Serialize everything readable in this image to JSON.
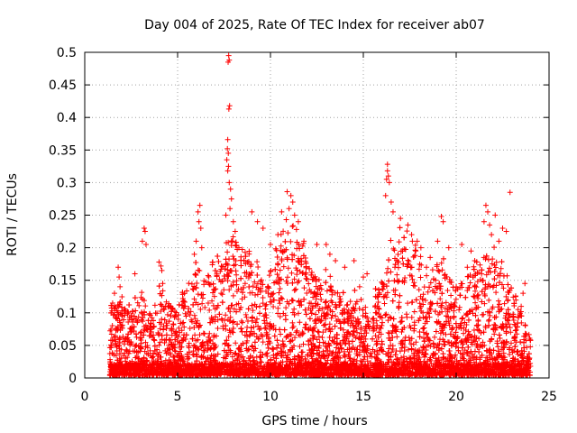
{
  "chart_data": {
    "type": "scatter",
    "title": "Day 004 of 2025, Rate Of TEC Index for receiver ab07",
    "xlabel": "GPS time / hours",
    "ylabel": "ROTI / TECUs",
    "xlim": [
      0,
      25
    ],
    "ylim": [
      0,
      0.5
    ],
    "xticks": [
      0,
      5,
      10,
      15,
      20,
      25
    ],
    "xtick_labels": [
      "0",
      "5",
      "10",
      "15",
      "20",
      "25"
    ],
    "yticks": [
      0,
      0.05,
      0.1,
      0.15,
      0.2,
      0.25,
      0.3,
      0.35,
      0.4,
      0.45,
      0.5
    ],
    "ytick_labels": [
      "0",
      "0.05",
      "0.1",
      "0.15",
      "0.2",
      "0.25",
      "0.3",
      "0.35",
      "0.4",
      "0.45",
      "0.5"
    ],
    "grid": true,
    "marker": "+",
    "color": "#ff0000",
    "x_range_of_data": [
      1.35,
      24.0
    ],
    "points": [
      [
        7.75,
        0.495
      ],
      [
        7.78,
        0.488
      ],
      [
        7.72,
        0.485
      ],
      [
        7.8,
        0.418
      ],
      [
        7.76,
        0.413
      ],
      [
        7.7,
        0.366
      ],
      [
        7.68,
        0.352
      ],
      [
        7.73,
        0.345
      ],
      [
        7.65,
        0.335
      ],
      [
        7.74,
        0.325
      ],
      [
        7.7,
        0.318
      ],
      [
        7.78,
        0.3
      ],
      [
        7.85,
        0.29
      ],
      [
        7.9,
        0.275
      ],
      [
        7.82,
        0.26
      ],
      [
        7.6,
        0.25
      ],
      [
        8.0,
        0.24
      ],
      [
        8.1,
        0.225
      ],
      [
        7.95,
        0.21
      ],
      [
        8.3,
        0.2
      ],
      [
        16.3,
        0.328
      ],
      [
        16.3,
        0.318
      ],
      [
        16.35,
        0.31
      ],
      [
        16.25,
        0.305
      ],
      [
        16.4,
        0.3
      ],
      [
        16.2,
        0.28
      ],
      [
        16.5,
        0.27
      ],
      [
        16.6,
        0.255
      ],
      [
        17.0,
        0.245
      ],
      [
        17.4,
        0.235
      ],
      [
        17.6,
        0.22
      ],
      [
        17.9,
        0.21
      ],
      [
        18.1,
        0.2
      ],
      [
        17.2,
        0.198
      ],
      [
        10.9,
        0.286
      ],
      [
        11.1,
        0.28
      ],
      [
        11.2,
        0.27
      ],
      [
        11.0,
        0.26
      ],
      [
        11.3,
        0.25
      ],
      [
        11.5,
        0.24
      ],
      [
        10.6,
        0.255
      ],
      [
        11.4,
        0.228
      ],
      [
        11.8,
        0.21
      ],
      [
        6.2,
        0.265
      ],
      [
        6.1,
        0.255
      ],
      [
        6.15,
        0.24
      ],
      [
        6.25,
        0.23
      ],
      [
        6.0,
        0.21
      ],
      [
        5.9,
        0.19
      ],
      [
        6.3,
        0.2
      ],
      [
        9.0,
        0.255
      ],
      [
        9.3,
        0.24
      ],
      [
        9.6,
        0.23
      ],
      [
        10.0,
        0.205
      ],
      [
        10.4,
        0.22
      ],
      [
        21.6,
        0.265
      ],
      [
        21.7,
        0.255
      ],
      [
        21.5,
        0.24
      ],
      [
        21.8,
        0.235
      ],
      [
        22.1,
        0.25
      ],
      [
        22.5,
        0.23
      ],
      [
        22.7,
        0.225
      ],
      [
        22.9,
        0.285
      ],
      [
        22.3,
        0.21
      ],
      [
        21.9,
        0.22
      ],
      [
        19.2,
        0.248
      ],
      [
        19.3,
        0.24
      ],
      [
        19.0,
        0.21
      ],
      [
        19.6,
        0.2
      ],
      [
        20.3,
        0.205
      ],
      [
        3.2,
        0.23
      ],
      [
        3.25,
        0.225
      ],
      [
        3.1,
        0.21
      ],
      [
        3.3,
        0.205
      ],
      [
        2.7,
        0.16
      ],
      [
        4.0,
        0.178
      ],
      [
        4.1,
        0.172
      ],
      [
        4.15,
        0.165
      ],
      [
        4.2,
        0.145
      ],
      [
        1.8,
        0.17
      ],
      [
        1.85,
        0.155
      ],
      [
        1.9,
        0.14
      ],
      [
        1.6,
        0.13
      ],
      [
        1.5,
        0.115
      ],
      [
        13.0,
        0.205
      ],
      [
        13.2,
        0.19
      ],
      [
        12.5,
        0.205
      ],
      [
        13.5,
        0.18
      ],
      [
        14.0,
        0.17
      ],
      [
        14.5,
        0.18
      ],
      [
        15.0,
        0.155
      ],
      [
        15.2,
        0.16
      ],
      [
        14.8,
        0.14
      ],
      [
        23.7,
        0.145
      ],
      [
        23.6,
        0.13
      ],
      [
        23.5,
        0.11
      ],
      [
        23.2,
        0.125
      ],
      [
        20.8,
        0.195
      ],
      [
        21.0,
        0.18
      ],
      [
        20.6,
        0.17
      ],
      [
        18.6,
        0.185
      ],
      [
        18.4,
        0.17
      ]
    ],
    "envelope": [
      [
        1.4,
        0.09
      ],
      [
        2.0,
        0.1
      ],
      [
        2.5,
        0.085
      ],
      [
        3.0,
        0.11
      ],
      [
        3.5,
        0.09
      ],
      [
        4.0,
        0.12
      ],
      [
        4.5,
        0.095
      ],
      [
        5.0,
        0.09
      ],
      [
        5.5,
        0.12
      ],
      [
        6.0,
        0.15
      ],
      [
        6.5,
        0.13
      ],
      [
        7.0,
        0.14
      ],
      [
        7.5,
        0.17
      ],
      [
        8.0,
        0.19
      ],
      [
        8.5,
        0.17
      ],
      [
        9.0,
        0.15
      ],
      [
        9.5,
        0.13
      ],
      [
        10.0,
        0.14
      ],
      [
        10.5,
        0.17
      ],
      [
        11.0,
        0.2
      ],
      [
        11.5,
        0.18
      ],
      [
        12.0,
        0.15
      ],
      [
        12.5,
        0.13
      ],
      [
        13.0,
        0.13
      ],
      [
        13.5,
        0.11
      ],
      [
        14.0,
        0.1
      ],
      [
        14.5,
        0.105
      ],
      [
        15.0,
        0.09
      ],
      [
        15.5,
        0.1
      ],
      [
        16.0,
        0.13
      ],
      [
        16.5,
        0.17
      ],
      [
        17.0,
        0.185
      ],
      [
        17.5,
        0.19
      ],
      [
        18.0,
        0.16
      ],
      [
        18.5,
        0.13
      ],
      [
        19.0,
        0.16
      ],
      [
        19.5,
        0.14
      ],
      [
        20.0,
        0.12
      ],
      [
        20.5,
        0.13
      ],
      [
        21.0,
        0.14
      ],
      [
        21.5,
        0.17
      ],
      [
        22.0,
        0.16
      ],
      [
        22.5,
        0.14
      ],
      [
        23.0,
        0.11
      ],
      [
        23.5,
        0.08
      ],
      [
        24.0,
        0.06
      ]
    ]
  }
}
